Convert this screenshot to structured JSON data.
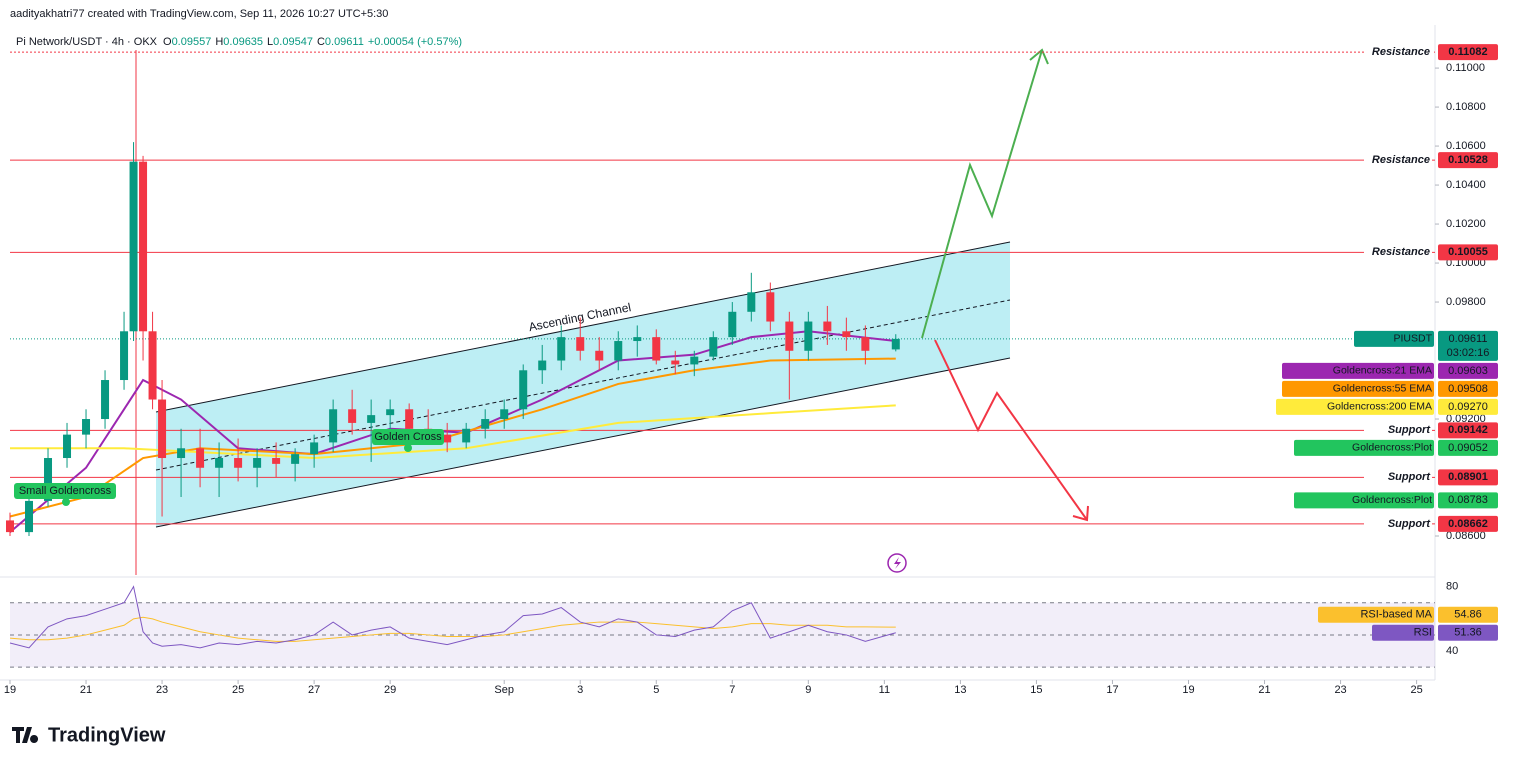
{
  "header": {
    "author_line": "aadityakhatri77 created with TradingView.com, Sep 11, 2026 10:27 UTC+5:30",
    "footer_logo": "TradingView"
  },
  "chart_data": {
    "type": "candlestick",
    "title": "Pi Network/USDT · 4h · OKX",
    "ohlc_legend": {
      "o_label": "O",
      "open": 0.09557,
      "h_label": "H",
      "high": 0.09635,
      "l_label": "L",
      "low": 0.09547,
      "c_label": "C",
      "close": 0.09611,
      "change": "+0.00054 (+0.57%)"
    },
    "up_color": "#089981",
    "down_color": "#f23645",
    "x": [
      0,
      0.5,
      1,
      1.5,
      2,
      2.5,
      3,
      3.25,
      3.5,
      3.75,
      4,
      4.5,
      5,
      5.5,
      6,
      6.5,
      7,
      7.5,
      8,
      8.5,
      9,
      9.5,
      10,
      10.5,
      11,
      11.5,
      12,
      12.5,
      13,
      13.5,
      14,
      14.5,
      15,
      15.5,
      16,
      16.5,
      17,
      17.5,
      18,
      18.5,
      19,
      19.5,
      20,
      20.5,
      21,
      21.5,
      22,
      22.5,
      23.3
    ],
    "open": [
      0.0868,
      0.0862,
      0.0878,
      0.09,
      0.0912,
      0.092,
      0.094,
      0.0965,
      0.1052,
      0.0965,
      0.093,
      0.09,
      0.0905,
      0.0895,
      0.09,
      0.0895,
      0.09,
      0.0897,
      0.0902,
      0.0908,
      0.0925,
      0.0918,
      0.0922,
      0.0925,
      0.0915,
      0.0912,
      0.0908,
      0.0915,
      0.092,
      0.0925,
      0.0945,
      0.095,
      0.0962,
      0.0955,
      0.095,
      0.096,
      0.0962,
      0.095,
      0.0948,
      0.0952,
      0.0962,
      0.0975,
      0.0985,
      0.097,
      0.0955,
      0.097,
      0.0965,
      0.0962,
      0.09557
    ],
    "high": [
      0.0872,
      0.088,
      0.0905,
      0.0918,
      0.0925,
      0.0945,
      0.0975,
      0.1062,
      0.1055,
      0.0975,
      0.094,
      0.0915,
      0.0915,
      0.0908,
      0.091,
      0.0905,
      0.0908,
      0.0905,
      0.0912,
      0.093,
      0.0935,
      0.093,
      0.093,
      0.0928,
      0.0925,
      0.0918,
      0.0918,
      0.0925,
      0.093,
      0.0948,
      0.0958,
      0.0968,
      0.0972,
      0.0962,
      0.0965,
      0.0968,
      0.0966,
      0.0955,
      0.0955,
      0.0965,
      0.098,
      0.0995,
      0.099,
      0.0975,
      0.0975,
      0.0978,
      0.0972,
      0.0968,
      0.09635
    ],
    "low": [
      0.086,
      0.086,
      0.0875,
      0.0895,
      0.0905,
      0.0915,
      0.0935,
      0.096,
      0.095,
      0.0925,
      0.087,
      0.088,
      0.0885,
      0.088,
      0.0888,
      0.0885,
      0.089,
      0.0888,
      0.0895,
      0.0903,
      0.0912,
      0.0898,
      0.0912,
      0.091,
      0.0908,
      0.0903,
      0.0905,
      0.091,
      0.0915,
      0.092,
      0.0938,
      0.0945,
      0.095,
      0.0945,
      0.0945,
      0.0952,
      0.0948,
      0.0943,
      0.0942,
      0.095,
      0.0958,
      0.097,
      0.0965,
      0.093,
      0.095,
      0.0958,
      0.0955,
      0.0948,
      0.09547
    ],
    "close": [
      0.0862,
      0.0878,
      0.09,
      0.0912,
      0.092,
      0.094,
      0.0965,
      0.1052,
      0.0965,
      0.093,
      0.09,
      0.0905,
      0.0895,
      0.09,
      0.0895,
      0.09,
      0.0897,
      0.0902,
      0.0908,
      0.0925,
      0.0918,
      0.0922,
      0.0925,
      0.0915,
      0.0912,
      0.0908,
      0.0915,
      0.092,
      0.0925,
      0.0945,
      0.095,
      0.0962,
      0.0955,
      0.095,
      0.096,
      0.0962,
      0.095,
      0.0948,
      0.0952,
      0.0962,
      0.0975,
      0.0985,
      0.097,
      0.0955,
      0.097,
      0.0965,
      0.0962,
      0.0955,
      0.09611
    ],
    "lines": [
      {
        "name": "Goldencross:21 EMA",
        "color": "#9c27b0",
        "x": [
          0,
          2,
          3,
          3.5,
          4.5,
          6,
          8,
          10,
          12,
          14,
          16,
          18,
          19.5,
          21,
          23.3
        ],
        "values": [
          0.0862,
          0.0895,
          0.0925,
          0.094,
          0.093,
          0.0905,
          0.0902,
          0.0915,
          0.0913,
          0.093,
          0.095,
          0.0953,
          0.0962,
          0.0965,
          0.096
        ]
      },
      {
        "name": "Goldencross:55 EMA",
        "color": "#ff9800",
        "x": [
          0,
          2,
          3.5,
          5,
          8,
          11,
          14,
          16,
          18,
          20,
          23.3
        ],
        "values": [
          0.087,
          0.088,
          0.09,
          0.0905,
          0.0902,
          0.0908,
          0.0925,
          0.0938,
          0.0945,
          0.095,
          0.0951
        ]
      },
      {
        "name": "Goldencross:200 EMA",
        "color": "#ffeb3b",
        "x": [
          0,
          3,
          8,
          12,
          16,
          20,
          23.3
        ],
        "values": [
          0.0905,
          0.0905,
          0.09,
          0.0905,
          0.0918,
          0.0923,
          0.0927
        ]
      }
    ],
    "levels": [
      {
        "label": "Resistance",
        "value": 0.11082
      },
      {
        "label": "Resistance",
        "value": 0.10528
      },
      {
        "label": "Resistance",
        "value": 0.10055
      },
      {
        "label": "Support",
        "value": 0.09142
      },
      {
        "label": "Support",
        "value": 0.08901
      },
      {
        "label": "Support",
        "value": 0.08662
      }
    ],
    "level_color": "#f23645",
    "axis_labels": [
      {
        "name": "PIUSDT",
        "value": 0.09611,
        "extra": "03:02:16",
        "color": "#089981",
        "text_color": "#ffffff"
      },
      {
        "name": "Goldencross:21 EMA",
        "value": 0.09603,
        "color": "#9c27b0",
        "text_color": "#ffffff"
      },
      {
        "name": "Goldencross:55 EMA",
        "value": 0.09508,
        "color": "#ff9800",
        "text_color": "#131722"
      },
      {
        "name": "Goldencross:200 EMA",
        "value": 0.0927,
        "value_label": "0.09270",
        "color": "#ffeb3b",
        "text_color": "#131722"
      },
      {
        "name": "Goldencross:Plot",
        "value": 0.09052,
        "color": "#22c55e",
        "text_color": "#131722"
      },
      {
        "name": "Goldencross:Plot",
        "value": 0.08783,
        "color": "#22c55e",
        "text_color": "#131722"
      }
    ],
    "annotations": {
      "channel": "Ascending Channel",
      "small_cross": "Small Goldencross",
      "golden_cross": "Golden Cross"
    },
    "ylim": [
      0.084,
      0.11144
    ],
    "yticks": [
      {
        "value": 0.11,
        "label": "0.11000"
      },
      {
        "value": 0.108,
        "label": "0.10800"
      },
      {
        "value": 0.106,
        "label": "0.10600"
      },
      {
        "value": 0.104,
        "label": "0.10400"
      },
      {
        "value": 0.102,
        "label": "0.10200"
      },
      {
        "value": 0.1,
        "label": "0.10000"
      },
      {
        "value": 0.098,
        "label": "0.09800"
      },
      {
        "value": 0.092,
        "label": "0.09200"
      },
      {
        "value": 0.086,
        "label": "0.08600"
      }
    ],
    "xlim": [
      0,
      37.3
    ],
    "xticks": [
      {
        "value": 0,
        "label": "19"
      },
      {
        "value": 2,
        "label": "21"
      },
      {
        "value": 4,
        "label": "23"
      },
      {
        "value": 6,
        "label": "25"
      },
      {
        "value": 8,
        "label": "27"
      },
      {
        "value": 10,
        "label": "29"
      },
      {
        "value": 13,
        "label": "Sep"
      },
      {
        "value": 15,
        "label": "3"
      },
      {
        "value": 17,
        "label": "5"
      },
      {
        "value": 19,
        "label": "7"
      },
      {
        "value": 21,
        "label": "9"
      },
      {
        "value": 23,
        "label": "11"
      },
      {
        "value": 25,
        "label": "13"
      },
      {
        "value": 27,
        "label": "15"
      },
      {
        "value": 29,
        "label": "17"
      },
      {
        "value": 31,
        "label": "19"
      },
      {
        "value": 33,
        "label": "21"
      },
      {
        "value": 35,
        "label": "23"
      },
      {
        "value": 37,
        "label": "25"
      }
    ],
    "rsi": {
      "name": "RSI",
      "color": "#7e57c2",
      "values": [
        45,
        42,
        55,
        60,
        62,
        66,
        70,
        80,
        52,
        45,
        43,
        44,
        42,
        45,
        44,
        46,
        45,
        47,
        50,
        58,
        50,
        53,
        55,
        48,
        46,
        44,
        47,
        50,
        52,
        62,
        63,
        67,
        58,
        55,
        60,
        58,
        50,
        49,
        53,
        55,
        65,
        70,
        48,
        52,
        56,
        52,
        50,
        46,
        51.36
      ],
      "ma_name": "RSI-based MA",
      "ma_color": "#fbc02d",
      "ma_values": [
        48,
        47,
        47,
        48,
        50,
        53,
        56,
        60,
        61,
        60,
        58,
        55,
        52,
        50,
        48,
        47,
        46,
        46,
        47,
        48,
        49,
        50,
        51,
        51,
        50,
        49,
        49,
        49,
        50,
        52,
        54,
        56,
        57,
        58,
        58,
        58,
        57,
        56,
        55,
        54,
        55,
        57,
        57,
        56,
        56,
        56,
        55,
        55,
        54.86
      ],
      "ylim": [
        22,
        86
      ],
      "yticks": [
        80,
        40
      ],
      "levels": [
        70,
        50,
        30
      ]
    }
  }
}
